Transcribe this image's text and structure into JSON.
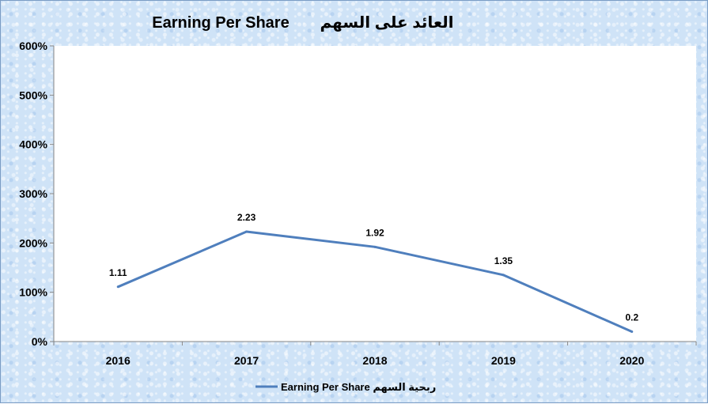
{
  "chart_data": {
    "type": "line",
    "title": "Earning Per Share",
    "title_ar": "العائد على السهم",
    "categories": [
      "2016",
      "2017",
      "2018",
      "2019",
      "2020"
    ],
    "series": [
      {
        "name": "Earning Per Share ربحية السهم",
        "values": [
          1.11,
          2.23,
          1.92,
          1.35,
          0.2
        ],
        "labels": [
          "1.11",
          "2.23",
          "1.92",
          "1.35",
          "0.2"
        ]
      }
    ],
    "yticks": [
      "0%",
      "100%",
      "200%",
      "300%",
      "400%",
      "500%",
      "600%"
    ],
    "ylim": [
      0,
      6
    ],
    "grid": false,
    "legend_position": "bottom",
    "colors": {
      "line": "#4f7fbd",
      "plot_bg": "#ffffff",
      "border": "#7a9cc4"
    }
  }
}
